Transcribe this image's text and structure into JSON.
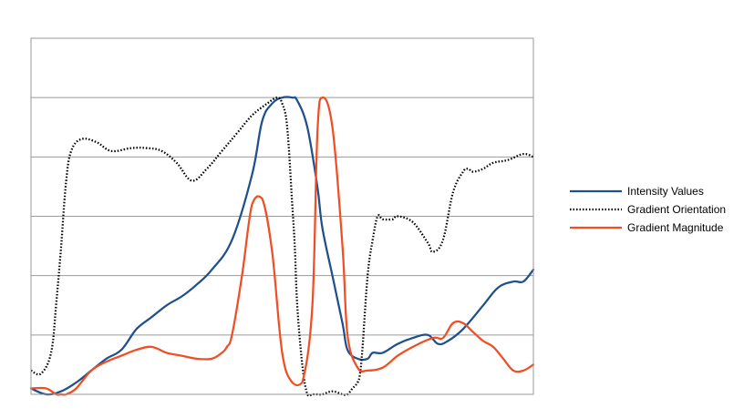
{
  "chart_data": {
    "type": "line",
    "title": "",
    "xlabel": "",
    "ylabel": "",
    "xlim": [
      0,
      100
    ],
    "ylim": [
      0,
      6
    ],
    "grid": "horizontal",
    "gridlines_y": [
      1,
      2,
      3,
      4,
      5
    ],
    "legend_position": "right",
    "series": [
      {
        "name": "Intensity Values",
        "color": "#1f4f8c",
        "dash": "solid",
        "x": [
          0,
          3,
          6,
          9,
          12,
          15,
          18,
          21,
          24,
          27,
          30,
          33,
          36,
          40,
          44,
          46,
          48,
          50,
          52,
          53,
          55,
          57,
          58,
          60,
          62,
          63,
          65,
          67,
          68,
          70,
          73,
          76,
          79,
          81,
          83,
          86,
          90,
          93,
          96,
          98,
          100
        ],
        "y": [
          0.1,
          0.0,
          0.05,
          0.2,
          0.4,
          0.6,
          0.75,
          1.1,
          1.3,
          1.5,
          1.65,
          1.85,
          2.1,
          2.6,
          3.7,
          4.6,
          4.9,
          5.0,
          5.0,
          4.95,
          4.5,
          3.5,
          2.8,
          2.0,
          1.2,
          0.75,
          0.6,
          0.6,
          0.7,
          0.7,
          0.85,
          0.95,
          1.0,
          0.85,
          0.9,
          1.1,
          1.5,
          1.8,
          1.9,
          1.9,
          2.1
        ]
      },
      {
        "name": "Gradient Orientation",
        "color": "#000000",
        "dash": "dotted",
        "x": [
          0,
          2,
          4,
          5,
          6,
          7,
          8,
          10,
          13,
          16,
          20,
          23,
          26,
          29,
          32,
          35,
          38,
          41,
          44,
          47,
          49,
          50,
          51,
          52,
          52.5,
          53,
          54,
          55,
          56,
          57,
          58,
          60,
          62,
          63,
          64,
          65,
          65.5,
          66,
          67,
          68,
          69,
          70,
          72,
          73,
          76,
          79,
          80,
          82,
          84,
          86,
          87,
          88,
          90,
          92,
          95,
          98,
          100
        ],
        "y": [
          0.4,
          0.35,
          0.7,
          1.5,
          2.5,
          3.6,
          4.1,
          4.3,
          4.25,
          4.1,
          4.15,
          4.15,
          4.1,
          3.9,
          3.6,
          3.8,
          4.1,
          4.4,
          4.7,
          4.9,
          5.0,
          4.9,
          4.5,
          3.2,
          2.5,
          1.5,
          0.5,
          0.0,
          0.0,
          0.0,
          0.0,
          0.05,
          0.0,
          0.0,
          0.1,
          0.2,
          0.35,
          0.8,
          2.0,
          2.6,
          3.0,
          2.95,
          2.95,
          3.0,
          2.9,
          2.55,
          2.4,
          2.6,
          3.4,
          3.75,
          3.8,
          3.75,
          3.8,
          3.9,
          3.95,
          4.05,
          4.0
        ]
      },
      {
        "name": "Gradient Magnitude",
        "color": "#f04e23",
        "dash": "solid",
        "x": [
          0,
          3,
          5,
          6,
          7,
          9,
          12,
          15,
          18,
          21,
          24,
          27,
          30,
          33,
          36,
          38,
          39,
          40,
          42,
          44,
          46,
          48,
          50,
          52,
          54,
          56,
          57,
          58,
          60,
          62,
          63,
          65,
          67,
          70,
          73,
          76,
          80,
          82,
          84,
          86,
          88,
          90,
          92,
          94,
          96,
          98,
          100
        ],
        "y": [
          0.1,
          0.1,
          0.0,
          0.0,
          0.0,
          0.1,
          0.4,
          0.55,
          0.65,
          0.75,
          0.8,
          0.7,
          0.65,
          0.6,
          0.6,
          0.7,
          0.8,
          1.0,
          2.0,
          3.2,
          3.3,
          2.4,
          0.7,
          0.2,
          0.2,
          1.5,
          4.4,
          5.0,
          4.5,
          2.5,
          1.0,
          0.45,
          0.4,
          0.45,
          0.65,
          0.8,
          0.95,
          0.95,
          1.2,
          1.2,
          1.05,
          0.9,
          0.8,
          0.6,
          0.4,
          0.4,
          0.5
        ]
      }
    ]
  }
}
